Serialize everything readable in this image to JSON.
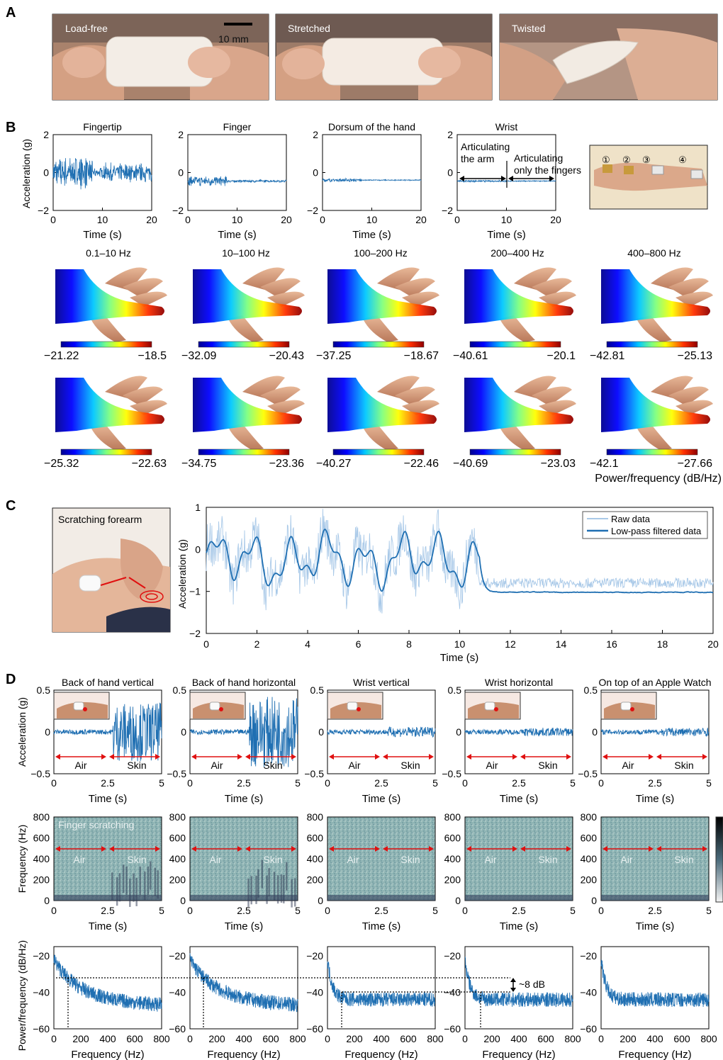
{
  "panels": {
    "a": "A",
    "b": "B",
    "c": "C",
    "d": "D"
  },
  "panel_a": {
    "photos": [
      "Load-free",
      "Stretched",
      "Twisted"
    ],
    "scale_bar": "10 mm"
  },
  "panel_b": {
    "ylabel": "Acceleration (g)",
    "xlabel": "Time (s)",
    "plots": [
      {
        "title": "Fingertip",
        "amp": 0.9
      },
      {
        "title": "Finger",
        "amp": 0.28
      },
      {
        "title": "Dorsum of the hand",
        "amp": 0.1
      },
      {
        "title": "Wrist",
        "amp": 0.06
      }
    ],
    "yticks": [
      "2",
      "0",
      "−2"
    ],
    "xticks": [
      "0",
      "10",
      "20"
    ],
    "wrist_annot_1": [
      "Articulating",
      "the arm"
    ],
    "wrist_annot_2": [
      "Articulating",
      "only the fingers"
    ],
    "photo_markers": [
      "①",
      "②",
      "③",
      "④"
    ],
    "bands": [
      "0.1–10 Hz",
      "10–100 Hz",
      "100–200 Hz",
      "200–400 Hz",
      "400–800 Hz"
    ],
    "row1_ranges": [
      [
        "−21.22",
        "−18.5"
      ],
      [
        "−32.09",
        "−20.43"
      ],
      [
        "−37.25",
        "−18.67"
      ],
      [
        "−40.61",
        "−20.1"
      ],
      [
        "−42.81",
        "−25.13"
      ]
    ],
    "row2_ranges": [
      [
        "−25.32",
        "−22.63"
      ],
      [
        "−34.75",
        "−23.36"
      ],
      [
        "−40.27",
        "−22.46"
      ],
      [
        "−40.69",
        "−23.03"
      ],
      [
        "−42.1",
        "−27.66"
      ]
    ],
    "colorbar_label": "Power/frequency (dB/Hz)"
  },
  "panel_c": {
    "photo_label": "Scratching forearm",
    "ylabel": "Acceleration (g)",
    "xlabel": "Time (s)",
    "legend": [
      "Raw data",
      "Low-pass filtered data"
    ],
    "colors": {
      "raw": "#a9c9e8",
      "filtered": "#1f6fb2"
    },
    "yticks": [
      "1",
      "0",
      "−1",
      "−2"
    ],
    "xticks": [
      "0",
      "2",
      "4",
      "6",
      "8",
      "10",
      "12",
      "14",
      "16",
      "18",
      "20"
    ]
  },
  "panel_d": {
    "titles": [
      "Back of hand vertical",
      "Back of hand horizontal",
      "Wrist vertical",
      "Wrist horizontal",
      "On top of an Apple Watch"
    ],
    "acc_ylabel": "Acceleration (g)",
    "freq_ylabel": "Frequency (Hz)",
    "psd_ylabel": "Power/frequency (dB/Hz)",
    "time_label": "Time (s)",
    "freq_label": "Frequency (Hz)",
    "air": "Air",
    "skin": "Skin",
    "finger_scratching": "Finger scratching",
    "acc_yticks": [
      "0.5",
      "0",
      "−0.5"
    ],
    "time_xticks": [
      "0",
      "2.5",
      "5"
    ],
    "spec_yticks": [
      "800",
      "600",
      "400",
      "200",
      "0"
    ],
    "psd_yticks": [
      "−20",
      "−40",
      "−60"
    ],
    "psd_xticks": [
      "0",
      "200",
      "400",
      "600",
      "800"
    ],
    "db_note": "~8 dB",
    "skin_amp": [
      0.35,
      0.42,
      0.06,
      0.05,
      0.05
    ]
  },
  "chart_data": [
    {
      "type": "line",
      "title": "Fingertip",
      "xlabel": "Time (s)",
      "ylabel": "Acceleration (g)",
      "xlim": [
        0,
        20
      ],
      "ylim": [
        -2,
        2
      ]
    },
    {
      "type": "line",
      "title": "Finger",
      "xlabel": "Time (s)",
      "xlim": [
        0,
        20
      ],
      "ylim": [
        -2,
        2
      ]
    },
    {
      "type": "line",
      "title": "Dorsum of the hand",
      "xlabel": "Time (s)",
      "xlim": [
        0,
        20
      ],
      "ylim": [
        -2,
        2
      ]
    },
    {
      "type": "line",
      "title": "Wrist",
      "xlabel": "Time (s)",
      "xlim": [
        0,
        20
      ],
      "ylim": [
        -2,
        2
      ]
    },
    {
      "type": "line",
      "xlabel": "Time (s)",
      "ylabel": "Acceleration (g)",
      "xlim": [
        0,
        20
      ],
      "ylim": [
        -2,
        1
      ],
      "series": [
        {
          "name": "Raw data"
        },
        {
          "name": "Low-pass filtered data"
        }
      ]
    },
    {
      "type": "line",
      "ylabel": "Power/frequency (dB/Hz)",
      "xlabel": "Frequency (Hz)",
      "xlim": [
        0,
        800
      ],
      "ylim": [
        -60,
        -15
      ],
      "annotation": "~8 dB"
    }
  ]
}
